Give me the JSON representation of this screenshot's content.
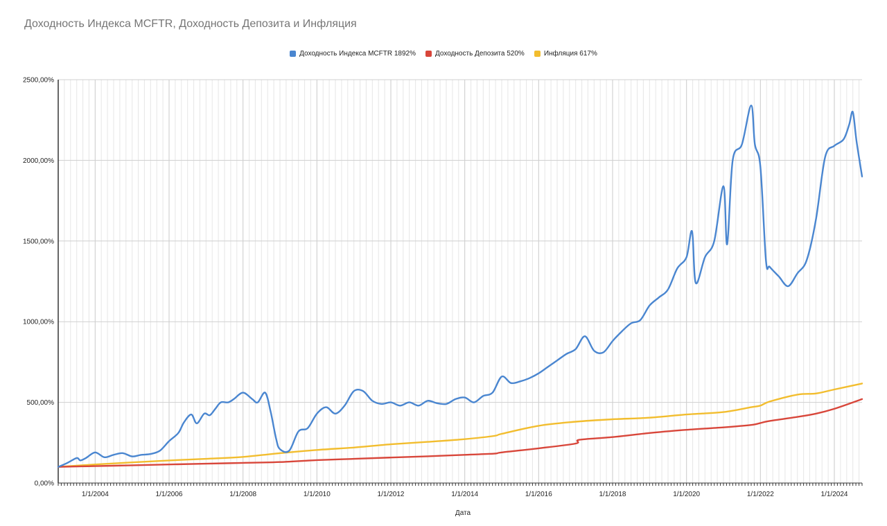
{
  "chart_data": {
    "type": "line",
    "title": "Доходность Индекса MCFTR, Доходность Депозита и Инфляция",
    "xlabel": "Дата",
    "ylabel": "",
    "xlim": [
      2003.0,
      2024.75
    ],
    "ylim": [
      0,
      2500
    ],
    "x_ticks": [
      "1/1/2004",
      "1/1/2006",
      "1/1/2008",
      "1/1/2010",
      "1/1/2012",
      "1/1/2014",
      "1/1/2016",
      "1/1/2018",
      "1/1/2020",
      "1/1/2022",
      "1/1/2024"
    ],
    "y_ticks": [
      "0,00%",
      "500,00%",
      "1000,00%",
      "1500,00%",
      "2000,00%",
      "2500,00%"
    ],
    "grid": true,
    "legend_position": "top-center",
    "series": [
      {
        "name": "Доходность Индекса MCFTR 1892%",
        "color": "#4a86d0",
        "x": [
          2003.0,
          2003.25,
          2003.5,
          2003.6,
          2003.75,
          2004.0,
          2004.25,
          2004.5,
          2004.75,
          2005.0,
          2005.25,
          2005.5,
          2005.75,
          2006.0,
          2006.25,
          2006.4,
          2006.6,
          2006.75,
          2006.95,
          2007.1,
          2007.25,
          2007.4,
          2007.6,
          2007.75,
          2008.0,
          2008.25,
          2008.4,
          2008.6,
          2008.75,
          2008.9,
          2009.0,
          2009.25,
          2009.5,
          2009.75,
          2010.0,
          2010.25,
          2010.5,
          2010.75,
          2011.0,
          2011.25,
          2011.5,
          2011.75,
          2012.0,
          2012.25,
          2012.5,
          2012.75,
          2013.0,
          2013.25,
          2013.5,
          2013.75,
          2014.0,
          2014.25,
          2014.5,
          2014.75,
          2015.0,
          2015.25,
          2015.5,
          2015.75,
          2016.0,
          2016.25,
          2016.5,
          2016.75,
          2017.0,
          2017.25,
          2017.5,
          2017.75,
          2018.0,
          2018.25,
          2018.5,
          2018.75,
          2019.0,
          2019.25,
          2019.5,
          2019.75,
          2020.0,
          2020.15,
          2020.25,
          2020.5,
          2020.75,
          2021.0,
          2021.1,
          2021.25,
          2021.5,
          2021.75,
          2021.85,
          2022.0,
          2022.15,
          2022.25,
          2022.5,
          2022.75,
          2023.0,
          2023.25,
          2023.5,
          2023.75,
          2024.0,
          2024.25,
          2024.4,
          2024.5,
          2024.6,
          2024.75
        ],
        "values": [
          100,
          125,
          155,
          140,
          155,
          190,
          160,
          175,
          185,
          165,
          175,
          180,
          200,
          260,
          310,
          375,
          425,
          370,
          430,
          420,
          460,
          500,
          500,
          520,
          560,
          520,
          500,
          560,
          440,
          270,
          210,
          200,
          320,
          340,
          430,
          470,
          430,
          480,
          570,
          570,
          510,
          490,
          500,
          480,
          500,
          480,
          510,
          495,
          490,
          520,
          530,
          500,
          540,
          560,
          660,
          620,
          630,
          650,
          680,
          720,
          760,
          800,
          830,
          910,
          820,
          810,
          880,
          940,
          990,
          1010,
          1100,
          1150,
          1200,
          1330,
          1400,
          1560,
          1240,
          1400,
          1500,
          1840,
          1480,
          2000,
          2100,
          2340,
          2100,
          1960,
          1380,
          1340,
          1280,
          1220,
          1300,
          1380,
          1630,
          2020,
          2090,
          2130,
          2220,
          2300,
          2120,
          1900
        ]
      },
      {
        "name": "Доходность Депозита 520%",
        "color": "#d8463a",
        "x": [
          2003.0,
          2004.0,
          2005.0,
          2006.0,
          2007.0,
          2008.0,
          2009.0,
          2010.0,
          2011.0,
          2012.0,
          2013.0,
          2014.0,
          2014.8,
          2015.0,
          2016.0,
          2017.0,
          2017.1,
          2018.0,
          2019.0,
          2020.0,
          2021.0,
          2021.75,
          2022.0,
          2022.25,
          2023.0,
          2023.5,
          2024.0,
          2024.75
        ],
        "values": [
          100,
          105,
          110,
          115,
          120,
          125,
          130,
          142,
          150,
          158,
          166,
          175,
          182,
          190,
          215,
          245,
          268,
          285,
          310,
          330,
          345,
          360,
          372,
          385,
          410,
          430,
          460,
          520
        ]
      },
      {
        "name": "Инфляция 617%",
        "color": "#f2bd2e",
        "x": [
          2003.0,
          2004.0,
          2005.0,
          2006.0,
          2007.0,
          2008.0,
          2009.0,
          2010.0,
          2011.0,
          2012.0,
          2013.0,
          2014.0,
          2014.8,
          2015.0,
          2016.0,
          2017.0,
          2018.0,
          2019.0,
          2020.0,
          2021.0,
          2021.75,
          2022.0,
          2022.25,
          2023.0,
          2023.5,
          2024.0,
          2024.75
        ],
        "values": [
          100,
          115,
          128,
          140,
          150,
          162,
          185,
          205,
          220,
          240,
          255,
          272,
          292,
          305,
          355,
          380,
          395,
          405,
          425,
          440,
          470,
          480,
          505,
          548,
          555,
          580,
          617
        ]
      }
    ]
  }
}
